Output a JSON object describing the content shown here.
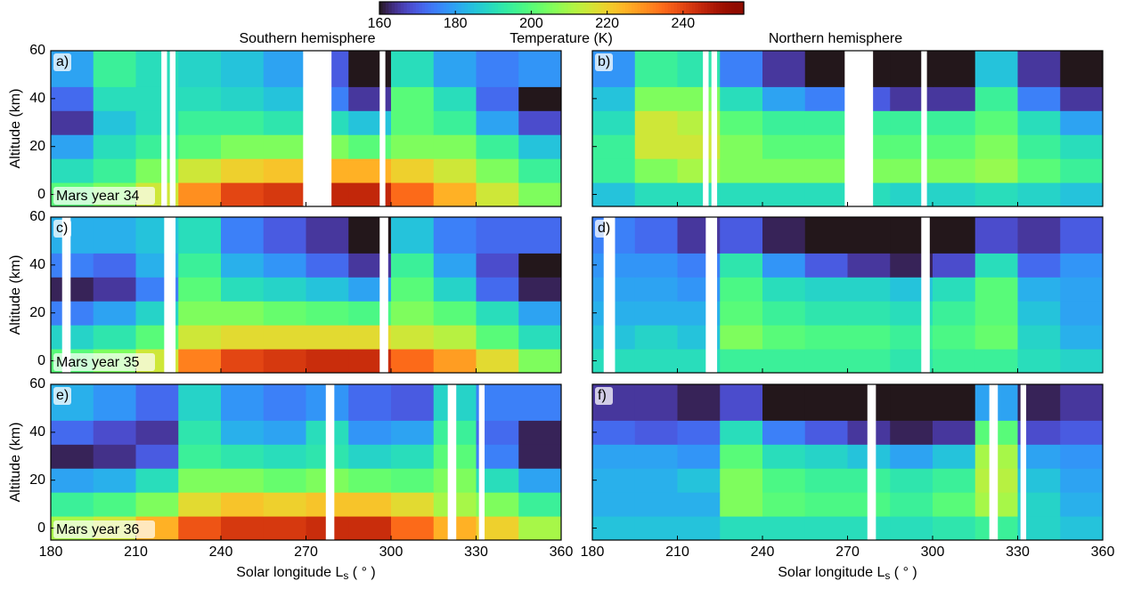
{
  "colorbar": {
    "label": "Temperature (K)",
    "lim": [
      160,
      256
    ],
    "ticks": [
      160,
      180,
      200,
      220,
      240
    ],
    "colormap": "turbo"
  },
  "column_titles": [
    "Southern hemisphere",
    "Northern hemisphere"
  ],
  "chart_data": [
    {
      "type": "heatmap",
      "label": "a)",
      "year_label": "Mars year 34",
      "ylabel": "Altitude (km)",
      "x": [
        180,
        195,
        210,
        225,
        240,
        255,
        270,
        285,
        300,
        315,
        330,
        345,
        360
      ],
      "y": [
        -5,
        5,
        15,
        25,
        35,
        45,
        60
      ],
      "xlim": [
        180,
        360
      ],
      "xticks": [
        180,
        210,
        240,
        270,
        300,
        330,
        360
      ],
      "ylim": [
        -5,
        60
      ],
      "yticks": [
        0,
        20,
        40,
        60
      ],
      "values": [
        [
          200,
          205,
          215,
          230,
          240,
          242,
          245,
          245,
          235,
          225,
          215,
          205
        ],
        [
          190,
          195,
          205,
          215,
          220,
          222,
          225,
          225,
          220,
          215,
          205,
          195
        ],
        [
          180,
          190,
          195,
          200,
          205,
          205,
          205,
          200,
          205,
          205,
          195,
          185
        ],
        [
          165,
          185,
          190,
          195,
          195,
          192,
          190,
          185,
          200,
          195,
          180,
          168
        ],
        [
          172,
          190,
          190,
          190,
          188,
          185,
          175,
          165,
          200,
          190,
          172,
          160
        ],
        [
          180,
          195,
          190,
          188,
          185,
          180,
          170,
          160,
          190,
          180,
          175,
          178
        ]
      ],
      "gaps": [
        [
          219,
          221
        ],
        [
          222,
          224
        ],
        [
          269,
          279
        ],
        [
          296,
          298
        ]
      ]
    },
    {
      "type": "heatmap",
      "label": "b)",
      "x": [
        180,
        195,
        210,
        225,
        240,
        255,
        270,
        285,
        300,
        315,
        330,
        345,
        360
      ],
      "y": [
        -5,
        5,
        15,
        25,
        35,
        45,
        60
      ],
      "xlim": [
        180,
        360
      ],
      "xticks": [
        180,
        210,
        240,
        270,
        300,
        330,
        360
      ],
      "ylim": [
        -5,
        60
      ],
      "yticks": [
        0,
        20,
        40,
        60
      ],
      "values": [
        [
          185,
          190,
          190,
          190,
          190,
          190,
          190,
          188,
          188,
          190,
          188,
          185
        ],
        [
          195,
          205,
          210,
          205,
          205,
          205,
          205,
          205,
          205,
          208,
          200,
          195
        ],
        [
          195,
          215,
          215,
          205,
          200,
          200,
          200,
          200,
          200,
          205,
          195,
          190
        ],
        [
          190,
          215,
          212,
          200,
          195,
          195,
          195,
          195,
          195,
          200,
          190,
          180
        ],
        [
          185,
          205,
          205,
          190,
          180,
          175,
          170,
          165,
          165,
          195,
          175,
          165
        ],
        [
          178,
          195,
          192,
          175,
          165,
          160,
          160,
          160,
          160,
          185,
          165,
          160
        ]
      ],
      "gaps": [
        [
          219,
          221
        ],
        [
          222,
          224
        ],
        [
          269,
          279
        ],
        [
          296,
          298
        ]
      ]
    },
    {
      "type": "heatmap",
      "label": "c)",
      "year_label": "Mars year 35",
      "ylabel": "Altitude (km)",
      "x": [
        180,
        195,
        210,
        225,
        240,
        255,
        270,
        285,
        300,
        315,
        330,
        345,
        360
      ],
      "y": [
        -5,
        5,
        15,
        25,
        35,
        45,
        60
      ],
      "xlim": [
        180,
        360
      ],
      "xticks": [
        180,
        210,
        240,
        270,
        300,
        330,
        360
      ],
      "ylim": [
        -5,
        60
      ],
      "yticks": [
        0,
        20,
        40,
        60
      ],
      "values": [
        [
          200,
          205,
          215,
          232,
          240,
          242,
          244,
          244,
          235,
          228,
          218,
          205
        ],
        [
          188,
          192,
          200,
          215,
          218,
          218,
          218,
          218,
          215,
          212,
          200,
          190
        ],
        [
          175,
          180,
          188,
          205,
          205,
          202,
          200,
          198,
          205,
          200,
          190,
          180
        ],
        [
          162,
          165,
          175,
          200,
          190,
          188,
          185,
          180,
          200,
          188,
          172,
          162
        ],
        [
          175,
          172,
          182,
          195,
          182,
          178,
          172,
          165,
          195,
          180,
          168,
          160
        ],
        [
          182,
          182,
          185,
          190,
          175,
          170,
          165,
          160,
          185,
          175,
          172,
          172
        ]
      ],
      "gaps": [
        [
          184,
          187
        ],
        [
          220,
          224
        ],
        [
          296,
          299
        ]
      ]
    },
    {
      "type": "heatmap",
      "label": "d)",
      "x": [
        180,
        195,
        210,
        225,
        240,
        255,
        270,
        285,
        300,
        315,
        330,
        345,
        360
      ],
      "y": [
        -5,
        5,
        15,
        25,
        35,
        45,
        60
      ],
      "xlim": [
        180,
        360
      ],
      "xticks": [
        180,
        210,
        240,
        270,
        300,
        330,
        360
      ],
      "ylim": [
        -5,
        60
      ],
      "yticks": [
        0,
        20,
        40,
        60
      ],
      "values": [
        [
          190,
          190,
          190,
          195,
          195,
          195,
          195,
          192,
          195,
          195,
          190,
          188
        ],
        [
          185,
          188,
          185,
          205,
          200,
          198,
          198,
          195,
          198,
          202,
          188,
          182
        ],
        [
          182,
          182,
          182,
          200,
          195,
          192,
          192,
          190,
          195,
          200,
          185,
          180
        ],
        [
          180,
          180,
          178,
          198,
          190,
          188,
          188,
          185,
          190,
          200,
          182,
          180
        ],
        [
          178,
          178,
          175,
          192,
          178,
          170,
          165,
          162,
          168,
          190,
          172,
          178
        ],
        [
          175,
          172,
          165,
          170,
          162,
          160,
          160,
          160,
          160,
          168,
          165,
          170
        ]
      ],
      "gaps": [
        [
          184,
          188
        ],
        [
          220,
          224
        ],
        [
          296,
          299
        ]
      ]
    },
    {
      "type": "heatmap",
      "label": "e)",
      "year_label": "Mars year 36",
      "ylabel": "Altitude (km)",
      "xlabel": [
        "Solar longitude L",
        "s",
        " ( ° )"
      ],
      "x": [
        180,
        195,
        210,
        225,
        240,
        255,
        270,
        285,
        300,
        315,
        330,
        345,
        360
      ],
      "y": [
        -5,
        5,
        15,
        25,
        35,
        45,
        60
      ],
      "xlim": [
        180,
        360
      ],
      "xticks": [
        180,
        210,
        240,
        270,
        300,
        330,
        360
      ],
      "ylim": [
        -5,
        60
      ],
      "yticks": [
        0,
        20,
        40,
        60
      ],
      "values": [
        [
          210,
          215,
          225,
          238,
          242,
          242,
          244,
          244,
          235,
          225,
          220,
          210
        ],
        [
          195,
          198,
          205,
          218,
          222,
          220,
          222,
          222,
          218,
          210,
          205,
          195
        ],
        [
          180,
          182,
          190,
          205,
          205,
          202,
          205,
          202,
          200,
          205,
          190,
          180
        ],
        [
          162,
          164,
          170,
          195,
          192,
          190,
          192,
          188,
          190,
          200,
          175,
          162
        ],
        [
          172,
          168,
          165,
          192,
          182,
          180,
          190,
          178,
          180,
          195,
          172,
          162
        ],
        [
          182,
          178,
          172,
          188,
          178,
          175,
          178,
          172,
          170,
          188,
          175,
          175
        ]
      ],
      "gaps": [
        [
          277,
          280
        ],
        [
          320,
          323
        ],
        [
          331,
          333
        ]
      ]
    },
    {
      "type": "heatmap",
      "label": "f)",
      "xlabel": [
        "Solar longitude L",
        "s",
        " ( ° )"
      ],
      "x": [
        180,
        195,
        210,
        225,
        240,
        255,
        270,
        285,
        300,
        315,
        330,
        345,
        360
      ],
      "y": [
        -5,
        5,
        15,
        25,
        35,
        45,
        60
      ],
      "xlim": [
        180,
        360
      ],
      "xticks": [
        180,
        210,
        240,
        270,
        300,
        330,
        360
      ],
      "ylim": [
        -5,
        60
      ],
      "yticks": [
        0,
        20,
        40,
        60
      ],
      "values": [
        [
          185,
          185,
          185,
          190,
          190,
          190,
          190,
          190,
          192,
          195,
          188,
          185
        ],
        [
          182,
          182,
          182,
          205,
          200,
          198,
          198,
          195,
          200,
          210,
          188,
          182
        ],
        [
          182,
          182,
          185,
          205,
          198,
          195,
          195,
          192,
          195,
          212,
          185,
          180
        ],
        [
          180,
          180,
          178,
          200,
          190,
          188,
          185,
          180,
          185,
          210,
          180,
          178
        ],
        [
          172,
          170,
          172,
          190,
          175,
          170,
          165,
          162,
          165,
          200,
          168,
          170
        ],
        [
          165,
          165,
          162,
          168,
          160,
          160,
          160,
          160,
          160,
          180,
          162,
          165
        ]
      ],
      "gaps": [
        [
          277,
          280
        ],
        [
          320,
          323
        ],
        [
          331,
          333
        ]
      ]
    }
  ]
}
